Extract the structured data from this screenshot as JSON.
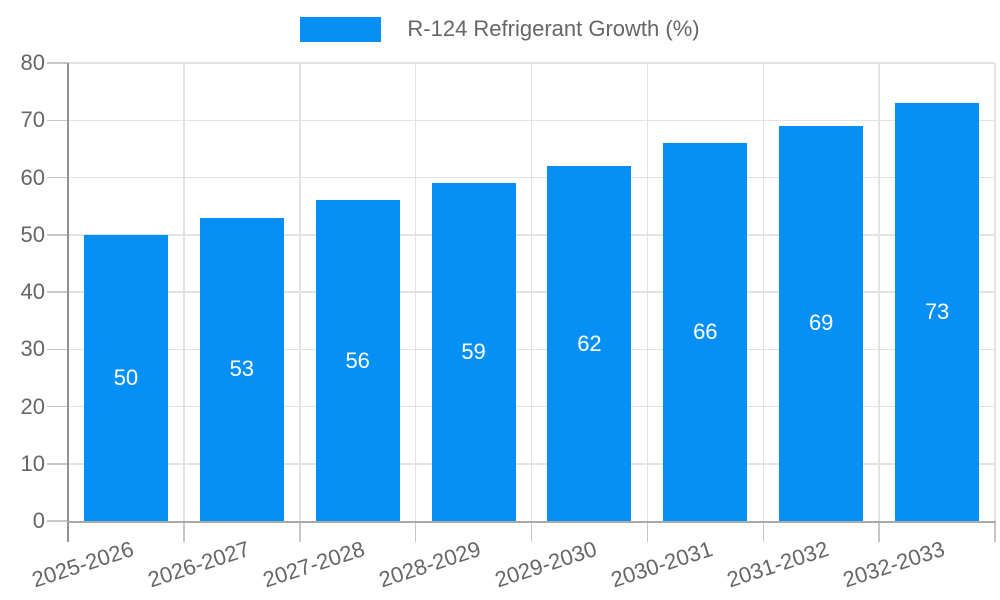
{
  "legend": {
    "label": "R-124 Refrigerant Growth (%)"
  },
  "chart_data": {
    "type": "bar",
    "title": "R-124 Refrigerant Growth (%)",
    "categories": [
      "2025-2026",
      "2026-2027",
      "2027-2028",
      "2028-2029",
      "2029-2030",
      "2030-2031",
      "2031-2032",
      "2032-2033"
    ],
    "series": [
      {
        "name": "R-124 Refrigerant Growth (%)",
        "values": [
          50,
          53,
          56,
          59,
          62,
          66,
          69,
          73
        ]
      }
    ],
    "values": [
      50,
      53,
      56,
      59,
      62,
      66,
      69,
      73
    ],
    "value_labels_shown": true,
    "value_label_position": "inside-center",
    "xlabel": "",
    "ylabel": "",
    "ylim": [
      0,
      80
    ],
    "yticks": [
      0,
      10,
      20,
      30,
      40,
      50,
      60,
      70,
      80
    ],
    "grid": true,
    "legend_position": "top-center",
    "colors": {
      "bar": "#0690f5",
      "grid": "#e3e3e3",
      "axis": "#999999",
      "tick": "#c6c6c6",
      "label_text": "#666666",
      "value_text": "#ffffff",
      "background": "#ffffff"
    }
  }
}
